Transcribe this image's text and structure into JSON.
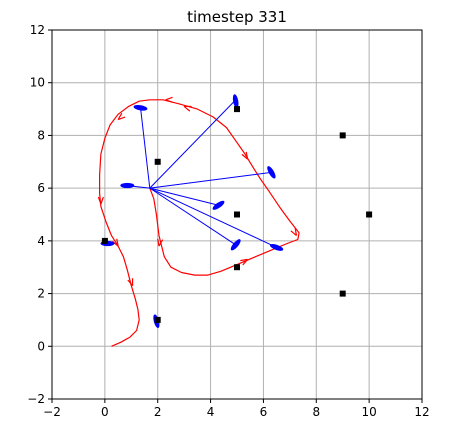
{
  "chart_data": {
    "type": "scatter",
    "title": "timestep  331",
    "xlabel": "",
    "ylabel": "",
    "xlim": [
      -2,
      12
    ],
    "ylim": [
      -2,
      12
    ],
    "xticks": [
      -2,
      0,
      2,
      4,
      6,
      8,
      10,
      12
    ],
    "yticks": [
      -2,
      0,
      2,
      4,
      6,
      8,
      10,
      12
    ],
    "xtick_labels": [
      "−2",
      "0",
      "2",
      "4",
      "6",
      "8",
      "10",
      "12"
    ],
    "ytick_labels": [
      "−2",
      "0",
      "2",
      "4",
      "6",
      "8",
      "10",
      "12"
    ],
    "grid": true,
    "colors": {
      "trajectory": "#ff0000",
      "links": "#0000ff",
      "agents": "#0000ff",
      "landmarks": "#000000",
      "grid": "#b0b0b0",
      "axes": "#000000"
    },
    "landmarks": [
      {
        "x": 5.0,
        "y": 9.0
      },
      {
        "x": 9.0,
        "y": 8.0
      },
      {
        "x": 2.0,
        "y": 7.0
      },
      {
        "x": 5.0,
        "y": 5.0
      },
      {
        "x": 10.0,
        "y": 5.0
      },
      {
        "x": 0.0,
        "y": 4.0
      },
      {
        "x": 5.0,
        "y": 3.0
      },
      {
        "x": 9.0,
        "y": 2.0
      },
      {
        "x": 2.0,
        "y": 1.0
      }
    ],
    "hub": {
      "x": 1.7,
      "y": 6.0
    },
    "links": [
      {
        "x": 4.95,
        "y": 9.35
      },
      {
        "x": 1.35,
        "y": 9.05
      },
      {
        "x": 6.3,
        "y": 6.6
      },
      {
        "x": 0.8,
        "y": 6.1
      },
      {
        "x": 4.3,
        "y": 5.35
      },
      {
        "x": 6.5,
        "y": 3.75
      },
      {
        "x": 4.95,
        "y": 3.85
      }
    ],
    "agents": [
      {
        "x": 4.95,
        "y": 9.3,
        "angle": -80
      },
      {
        "x": 1.35,
        "y": 9.05,
        "angle": -10
      },
      {
        "x": 6.3,
        "y": 6.6,
        "angle": -60
      },
      {
        "x": 0.85,
        "y": 6.1,
        "angle": 0
      },
      {
        "x": 4.3,
        "y": 5.35,
        "angle": 35
      },
      {
        "x": 6.5,
        "y": 3.75,
        "angle": -20
      },
      {
        "x": 4.95,
        "y": 3.85,
        "angle": 50
      },
      {
        "x": 0.1,
        "y": 3.9,
        "angle": 0
      },
      {
        "x": 1.95,
        "y": 0.95,
        "angle": -75
      }
    ],
    "trajectory": [
      [
        0.25,
        0.0
      ],
      [
        0.6,
        0.15
      ],
      [
        0.95,
        0.35
      ],
      [
        1.2,
        0.6
      ],
      [
        1.3,
        1.0
      ],
      [
        1.25,
        1.4
      ],
      [
        1.15,
        1.8
      ],
      [
        1.0,
        2.3
      ],
      [
        0.85,
        2.9
      ],
      [
        0.7,
        3.4
      ],
      [
        0.5,
        3.8
      ],
      [
        0.25,
        4.2
      ],
      [
        0.05,
        4.7
      ],
      [
        -0.15,
        5.3
      ],
      [
        -0.2,
        5.8
      ],
      [
        -0.2,
        6.5
      ],
      [
        -0.15,
        7.3
      ],
      [
        0.0,
        7.9
      ],
      [
        0.2,
        8.4
      ],
      [
        0.5,
        8.8
      ],
      [
        0.9,
        9.1
      ],
      [
        1.3,
        9.3
      ],
      [
        1.7,
        9.35
      ],
      [
        2.2,
        9.35
      ],
      [
        2.8,
        9.2
      ],
      [
        3.5,
        9.0
      ],
      [
        4.1,
        8.7
      ],
      [
        4.6,
        8.3
      ],
      [
        4.95,
        7.8
      ],
      [
        5.3,
        7.3
      ],
      [
        5.6,
        6.8
      ],
      [
        5.85,
        6.4
      ],
      [
        6.2,
        5.9
      ],
      [
        6.6,
        5.3
      ],
      [
        7.0,
        4.75
      ],
      [
        7.35,
        4.3
      ],
      [
        7.3,
        4.05
      ],
      [
        6.9,
        3.9
      ],
      [
        6.3,
        3.65
      ],
      [
        5.7,
        3.4
      ],
      [
        5.0,
        3.1
      ],
      [
        4.4,
        2.85
      ],
      [
        3.9,
        2.7
      ],
      [
        3.4,
        2.7
      ],
      [
        2.9,
        2.8
      ],
      [
        2.5,
        3.0
      ],
      [
        2.25,
        3.4
      ],
      [
        2.05,
        4.2
      ],
      [
        1.95,
        5.0
      ],
      [
        1.85,
        5.6
      ],
      [
        1.7,
        6.0
      ]
    ],
    "arrows": [
      {
        "x": 0.5,
        "y": 8.6,
        "angle": 220
      },
      {
        "x": 2.3,
        "y": 9.35,
        "angle": 180
      },
      {
        "x": 3.0,
        "y": 9.1,
        "angle": 160
      },
      {
        "x": 5.4,
        "y": 7.1,
        "angle": 300
      },
      {
        "x": 7.25,
        "y": 4.2,
        "angle": 300
      },
      {
        "x": 5.4,
        "y": 3.3,
        "angle": 30
      },
      {
        "x": 2.05,
        "y": 3.8,
        "angle": 260
      },
      {
        "x": 1.05,
        "y": 2.3,
        "angle": 290
      },
      {
        "x": 0.5,
        "y": 3.8,
        "angle": 300
      },
      {
        "x": -0.15,
        "y": 5.4,
        "angle": 270
      }
    ]
  }
}
